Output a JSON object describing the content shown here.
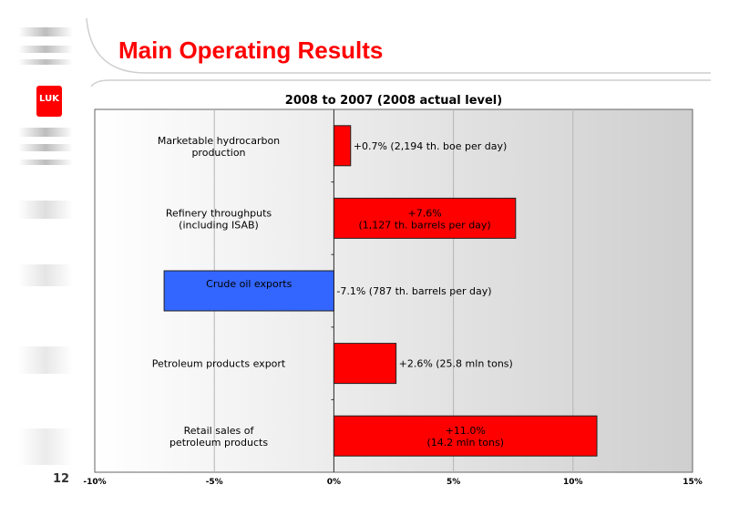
{
  "header": {
    "title": "Main Operating Results"
  },
  "footer": {
    "page_number": "12"
  },
  "logo": {
    "text": "LUK"
  },
  "colors": {
    "positive": "#ff0000",
    "negative": "#3366ff",
    "title": "#ff0000"
  },
  "chart_data": {
    "type": "bar",
    "orientation": "horizontal",
    "title": "2008 to 2007 (2008 actual level)",
    "xlim": [
      -10,
      15
    ],
    "ticks": [
      -10,
      -5,
      0,
      5,
      10,
      15
    ],
    "tick_labels": [
      "-10%",
      "-5%",
      "0%",
      "5%",
      "10%",
      "15%"
    ],
    "grid": true,
    "categories": [
      [
        "Marketable hydrocarbon",
        "production"
      ],
      [
        "Refinery throughputs",
        "(including ISAB)"
      ],
      [
        "Crude oil exports"
      ],
      [
        "Petroleum products export"
      ],
      [
        "Retail sales of",
        "petroleum products"
      ]
    ],
    "values": [
      0.7,
      7.6,
      -7.1,
      2.6,
      11.0
    ],
    "data_labels": [
      [
        "+0.7% (2,194 th. boe per day)"
      ],
      [
        "+7.6%",
        "(1,127 th. barrels per day)"
      ],
      [
        "-7.1% (787 th. barrels per day)"
      ],
      [
        "+2.6% (25.8 mln tons)"
      ],
      [
        "+11.0%",
        "(14.2 mln tons)"
      ]
    ]
  }
}
